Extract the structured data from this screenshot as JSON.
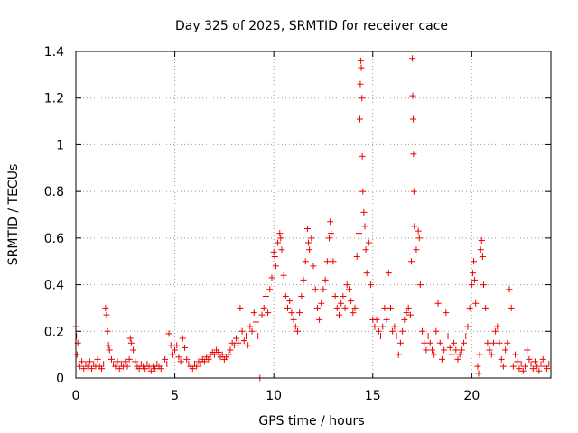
{
  "chart_data": {
    "type": "scatter",
    "title": "Day 325 of 2025, SRMTID for receiver cace",
    "xlabel": "GPS time / hours",
    "ylabel": "SRMTID / TECUs",
    "xlim": [
      0,
      24
    ],
    "ylim": [
      0,
      1.4
    ],
    "x_ticks": [
      0,
      5,
      10,
      15,
      20
    ],
    "x_tick_labels": [
      "0",
      "5",
      "10",
      "15",
      "20"
    ],
    "y_ticks": [
      0,
      0.2,
      0.4,
      0.6,
      0.8,
      1,
      1.2,
      1.4
    ],
    "y_tick_labels": [
      "0",
      "0.2",
      "0.4",
      "0.6",
      "0.8",
      "1",
      "1.2",
      "1.4"
    ],
    "grid": true,
    "marker": "plus",
    "color": "#ee0000",
    "series": [
      {
        "name": "SRMTID",
        "points": [
          [
            0.0,
            0.22
          ],
          [
            0.03,
            0.18
          ],
          [
            0.06,
            0.1
          ],
          [
            0.1,
            0.15
          ],
          [
            0.15,
            0.06
          ],
          [
            0.2,
            0.05
          ],
          [
            0.3,
            0.07
          ],
          [
            0.4,
            0.04
          ],
          [
            0.5,
            0.06
          ],
          [
            0.6,
            0.05
          ],
          [
            0.7,
            0.07
          ],
          [
            0.8,
            0.04
          ],
          [
            0.9,
            0.06
          ],
          [
            1.0,
            0.05
          ],
          [
            1.1,
            0.08
          ],
          [
            1.2,
            0.05
          ],
          [
            1.3,
            0.04
          ],
          [
            1.4,
            0.06
          ],
          [
            1.5,
            0.3
          ],
          [
            1.55,
            0.27
          ],
          [
            1.6,
            0.2
          ],
          [
            1.65,
            0.14
          ],
          [
            1.7,
            0.12
          ],
          [
            1.8,
            0.08
          ],
          [
            1.9,
            0.06
          ],
          [
            2.0,
            0.05
          ],
          [
            2.1,
            0.07
          ],
          [
            2.2,
            0.04
          ],
          [
            2.3,
            0.06
          ],
          [
            2.4,
            0.05
          ],
          [
            2.5,
            0.07
          ],
          [
            2.6,
            0.05
          ],
          [
            2.7,
            0.08
          ],
          [
            2.75,
            0.17
          ],
          [
            2.8,
            0.15
          ],
          [
            2.9,
            0.12
          ],
          [
            3.0,
            0.07
          ],
          [
            3.1,
            0.05
          ],
          [
            3.2,
            0.04
          ],
          [
            3.3,
            0.06
          ],
          [
            3.4,
            0.05
          ],
          [
            3.5,
            0.04
          ],
          [
            3.6,
            0.06
          ],
          [
            3.7,
            0.05
          ],
          [
            3.8,
            0.03
          ],
          [
            3.9,
            0.05
          ],
          [
            4.0,
            0.04
          ],
          [
            4.1,
            0.06
          ],
          [
            4.2,
            0.05
          ],
          [
            4.3,
            0.04
          ],
          [
            4.4,
            0.06
          ],
          [
            4.5,
            0.08
          ],
          [
            4.6,
            0.06
          ],
          [
            4.7,
            0.19
          ],
          [
            4.8,
            0.14
          ],
          [
            4.9,
            0.1
          ],
          [
            5.0,
            0.12
          ],
          [
            5.1,
            0.14
          ],
          [
            5.2,
            0.09
          ],
          [
            5.3,
            0.07
          ],
          [
            5.4,
            0.17
          ],
          [
            5.5,
            0.13
          ],
          [
            5.6,
            0.08
          ],
          [
            5.7,
            0.06
          ],
          [
            5.8,
            0.05
          ],
          [
            5.9,
            0.04
          ],
          [
            6.0,
            0.06
          ],
          [
            6.1,
            0.05
          ],
          [
            6.2,
            0.07
          ],
          [
            6.3,
            0.06
          ],
          [
            6.4,
            0.08
          ],
          [
            6.5,
            0.07
          ],
          [
            6.6,
            0.09
          ],
          [
            6.7,
            0.08
          ],
          [
            6.8,
            0.1
          ],
          [
            6.9,
            0.11
          ],
          [
            7.0,
            0.1
          ],
          [
            7.1,
            0.12
          ],
          [
            7.2,
            0.11
          ],
          [
            7.3,
            0.09
          ],
          [
            7.4,
            0.1
          ],
          [
            7.5,
            0.08
          ],
          [
            7.6,
            0.09
          ],
          [
            7.7,
            0.1
          ],
          [
            7.8,
            0.12
          ],
          [
            7.9,
            0.15
          ],
          [
            8.0,
            0.14
          ],
          [
            8.1,
            0.17
          ],
          [
            8.2,
            0.15
          ],
          [
            8.3,
            0.3
          ],
          [
            8.4,
            0.2
          ],
          [
            8.5,
            0.16
          ],
          [
            8.6,
            0.18
          ],
          [
            8.7,
            0.14
          ],
          [
            8.8,
            0.22
          ],
          [
            8.9,
            0.2
          ],
          [
            9.0,
            0.28
          ],
          [
            9.1,
            0.24
          ],
          [
            9.2,
            0.18
          ],
          [
            9.3,
            0.0
          ],
          [
            9.4,
            0.27
          ],
          [
            9.5,
            0.3
          ],
          [
            9.6,
            0.35
          ],
          [
            9.7,
            0.28
          ],
          [
            9.8,
            0.38
          ],
          [
            9.9,
            0.43
          ],
          [
            10.0,
            0.54
          ],
          [
            10.05,
            0.52
          ],
          [
            10.1,
            0.48
          ],
          [
            10.2,
            0.58
          ],
          [
            10.3,
            0.62
          ],
          [
            10.35,
            0.6
          ],
          [
            10.4,
            0.55
          ],
          [
            10.5,
            0.44
          ],
          [
            10.6,
            0.35
          ],
          [
            10.7,
            0.3
          ],
          [
            10.8,
            0.33
          ],
          [
            10.9,
            0.28
          ],
          [
            11.0,
            0.25
          ],
          [
            11.1,
            0.22
          ],
          [
            11.2,
            0.2
          ],
          [
            11.3,
            0.28
          ],
          [
            11.4,
            0.35
          ],
          [
            11.5,
            0.42
          ],
          [
            11.6,
            0.5
          ],
          [
            11.7,
            0.64
          ],
          [
            11.75,
            0.58
          ],
          [
            11.8,
            0.55
          ],
          [
            11.9,
            0.6
          ],
          [
            12.0,
            0.48
          ],
          [
            12.1,
            0.38
          ],
          [
            12.2,
            0.3
          ],
          [
            12.3,
            0.25
          ],
          [
            12.4,
            0.32
          ],
          [
            12.5,
            0.38
          ],
          [
            12.6,
            0.42
          ],
          [
            12.7,
            0.5
          ],
          [
            12.8,
            0.6
          ],
          [
            12.85,
            0.67
          ],
          [
            12.9,
            0.62
          ],
          [
            13.0,
            0.5
          ],
          [
            13.1,
            0.35
          ],
          [
            13.2,
            0.3
          ],
          [
            13.3,
            0.27
          ],
          [
            13.4,
            0.32
          ],
          [
            13.5,
            0.35
          ],
          [
            13.6,
            0.3
          ],
          [
            13.7,
            0.4
          ],
          [
            13.8,
            0.38
          ],
          [
            13.9,
            0.33
          ],
          [
            14.0,
            0.28
          ],
          [
            14.1,
            0.3
          ],
          [
            14.2,
            0.52
          ],
          [
            14.3,
            0.62
          ],
          [
            14.35,
            1.11
          ],
          [
            14.37,
            1.26
          ],
          [
            14.4,
            1.36
          ],
          [
            14.42,
            1.33
          ],
          [
            14.45,
            1.2
          ],
          [
            14.47,
            0.95
          ],
          [
            14.5,
            0.8
          ],
          [
            14.55,
            0.71
          ],
          [
            14.6,
            0.65
          ],
          [
            14.65,
            0.55
          ],
          [
            14.7,
            0.45
          ],
          [
            14.8,
            0.58
          ],
          [
            14.9,
            0.4
          ],
          [
            15.0,
            0.25
          ],
          [
            15.1,
            0.22
          ],
          [
            15.2,
            0.25
          ],
          [
            15.3,
            0.2
          ],
          [
            15.4,
            0.18
          ],
          [
            15.5,
            0.22
          ],
          [
            15.6,
            0.3
          ],
          [
            15.7,
            0.25
          ],
          [
            15.8,
            0.45
          ],
          [
            15.9,
            0.3
          ],
          [
            16.0,
            0.2
          ],
          [
            16.1,
            0.22
          ],
          [
            16.2,
            0.18
          ],
          [
            16.3,
            0.1
          ],
          [
            16.4,
            0.15
          ],
          [
            16.5,
            0.2
          ],
          [
            16.6,
            0.25
          ],
          [
            16.7,
            0.28
          ],
          [
            16.8,
            0.3
          ],
          [
            16.9,
            0.27
          ],
          [
            16.95,
            0.5
          ],
          [
            17.0,
            1.37
          ],
          [
            17.02,
            1.21
          ],
          [
            17.04,
            1.11
          ],
          [
            17.06,
            0.96
          ],
          [
            17.08,
            0.8
          ],
          [
            17.1,
            0.65
          ],
          [
            17.2,
            0.55
          ],
          [
            17.3,
            0.63
          ],
          [
            17.35,
            0.6
          ],
          [
            17.4,
            0.4
          ],
          [
            17.5,
            0.2
          ],
          [
            17.6,
            0.15
          ],
          [
            17.7,
            0.12
          ],
          [
            17.8,
            0.18
          ],
          [
            17.9,
            0.15
          ],
          [
            18.0,
            0.12
          ],
          [
            18.1,
            0.1
          ],
          [
            18.2,
            0.2
          ],
          [
            18.3,
            0.32
          ],
          [
            18.4,
            0.15
          ],
          [
            18.5,
            0.08
          ],
          [
            18.6,
            0.12
          ],
          [
            18.7,
            0.28
          ],
          [
            18.8,
            0.18
          ],
          [
            18.9,
            0.13
          ],
          [
            19.0,
            0.1
          ],
          [
            19.1,
            0.15
          ],
          [
            19.2,
            0.12
          ],
          [
            19.3,
            0.08
          ],
          [
            19.4,
            0.1
          ],
          [
            19.5,
            0.12
          ],
          [
            19.6,
            0.15
          ],
          [
            19.7,
            0.18
          ],
          [
            19.8,
            0.22
          ],
          [
            19.9,
            0.3
          ],
          [
            20.0,
            0.4
          ],
          [
            20.05,
            0.45
          ],
          [
            20.1,
            0.5
          ],
          [
            20.15,
            0.42
          ],
          [
            20.2,
            0.32
          ],
          [
            20.3,
            0.05
          ],
          [
            20.35,
            0.02
          ],
          [
            20.4,
            0.1
          ],
          [
            20.45,
            0.55
          ],
          [
            20.5,
            0.59
          ],
          [
            20.55,
            0.52
          ],
          [
            20.6,
            0.4
          ],
          [
            20.7,
            0.3
          ],
          [
            20.8,
            0.15
          ],
          [
            20.9,
            0.12
          ],
          [
            21.0,
            0.1
          ],
          [
            21.1,
            0.15
          ],
          [
            21.2,
            0.2
          ],
          [
            21.3,
            0.22
          ],
          [
            21.4,
            0.15
          ],
          [
            21.5,
            0.08
          ],
          [
            21.6,
            0.05
          ],
          [
            21.7,
            0.12
          ],
          [
            21.8,
            0.15
          ],
          [
            21.9,
            0.38
          ],
          [
            22.0,
            0.3
          ],
          [
            22.1,
            0.05
          ],
          [
            22.2,
            0.1
          ],
          [
            22.3,
            0.07
          ],
          [
            22.4,
            0.04
          ],
          [
            22.5,
            0.06
          ],
          [
            22.6,
            0.03
          ],
          [
            22.7,
            0.05
          ],
          [
            22.8,
            0.12
          ],
          [
            22.9,
            0.08
          ],
          [
            23.0,
            0.06
          ],
          [
            23.1,
            0.04
          ],
          [
            23.2,
            0.07
          ],
          [
            23.3,
            0.05
          ],
          [
            23.4,
            0.03
          ],
          [
            23.5,
            0.06
          ],
          [
            23.6,
            0.08
          ],
          [
            23.7,
            0.05
          ],
          [
            23.8,
            0.04
          ],
          [
            23.9,
            0.06
          ]
        ]
      }
    ]
  }
}
